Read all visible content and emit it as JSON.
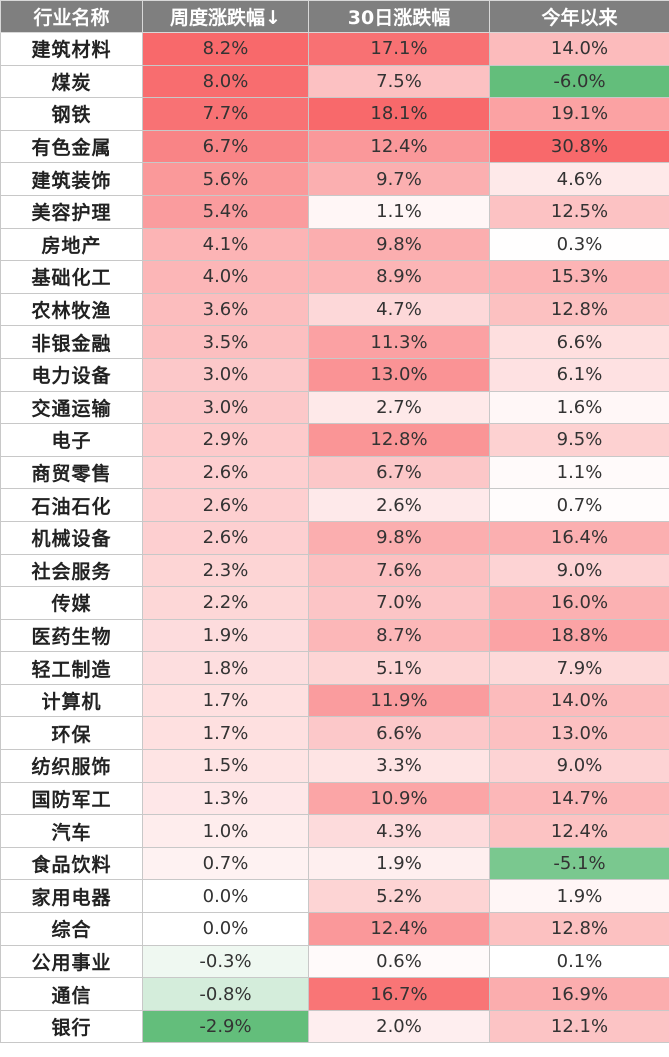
{
  "chart_data": {
    "type": "table",
    "columns": [
      "行业名称",
      "周度涨跌幅↓",
      "30日涨跌幅",
      "今年以来"
    ],
    "rows": [
      {
        "name": "建筑材料",
        "values": [
          8.2,
          17.1,
          14.0
        ]
      },
      {
        "name": "煤炭",
        "values": [
          8.0,
          7.5,
          -6.0
        ]
      },
      {
        "name": "钢铁",
        "values": [
          7.7,
          18.1,
          19.1
        ]
      },
      {
        "name": "有色金属",
        "values": [
          6.7,
          12.4,
          30.8
        ]
      },
      {
        "name": "建筑装饰",
        "values": [
          5.6,
          9.7,
          4.6
        ]
      },
      {
        "name": "美容护理",
        "values": [
          5.4,
          1.1,
          12.5
        ]
      },
      {
        "name": "房地产",
        "values": [
          4.1,
          9.8,
          0.3
        ]
      },
      {
        "name": "基础化工",
        "values": [
          4.0,
          8.9,
          15.3
        ]
      },
      {
        "name": "农林牧渔",
        "values": [
          3.6,
          4.7,
          12.8
        ]
      },
      {
        "name": "非银金融",
        "values": [
          3.5,
          11.3,
          6.6
        ]
      },
      {
        "name": "电力设备",
        "values": [
          3.0,
          13.0,
          6.1
        ]
      },
      {
        "name": "交通运输",
        "values": [
          3.0,
          2.7,
          1.6
        ]
      },
      {
        "name": "电子",
        "values": [
          2.9,
          12.8,
          9.5
        ]
      },
      {
        "name": "商贸零售",
        "values": [
          2.6,
          6.7,
          1.1
        ]
      },
      {
        "name": "石油石化",
        "values": [
          2.6,
          2.6,
          0.7
        ]
      },
      {
        "name": "机械设备",
        "values": [
          2.6,
          9.8,
          16.4
        ]
      },
      {
        "name": "社会服务",
        "values": [
          2.3,
          7.6,
          9.0
        ]
      },
      {
        "name": "传媒",
        "values": [
          2.2,
          7.0,
          16.0
        ]
      },
      {
        "name": "医药生物",
        "values": [
          1.9,
          8.7,
          18.8
        ]
      },
      {
        "name": "轻工制造",
        "values": [
          1.8,
          5.1,
          7.9
        ]
      },
      {
        "name": "计算机",
        "values": [
          1.7,
          11.9,
          14.0
        ]
      },
      {
        "name": "环保",
        "values": [
          1.7,
          6.6,
          13.0
        ]
      },
      {
        "name": "纺织服饰",
        "values": [
          1.5,
          3.3,
          9.0
        ]
      },
      {
        "name": "国防军工",
        "values": [
          1.3,
          10.9,
          14.7
        ]
      },
      {
        "name": "汽车",
        "values": [
          1.0,
          4.3,
          12.4
        ]
      },
      {
        "name": "食品饮料",
        "values": [
          0.7,
          1.9,
          -5.1
        ]
      },
      {
        "name": "家用电器",
        "values": [
          0.0,
          5.2,
          1.9
        ]
      },
      {
        "name": "综合",
        "values": [
          0.0,
          12.4,
          12.8
        ]
      },
      {
        "name": "公用事业",
        "values": [
          -0.3,
          0.6,
          0.1
        ]
      },
      {
        "name": "通信",
        "values": [
          -0.8,
          16.7,
          16.9
        ]
      },
      {
        "name": "银行",
        "values": [
          -2.9,
          2.0,
          12.1
        ]
      }
    ],
    "unit": "%",
    "colors": {
      "header_bg": "#7f7f7f",
      "positive_max": "#f8696b",
      "neutral": "#ffffff",
      "negative_max": "#63be7b"
    }
  }
}
